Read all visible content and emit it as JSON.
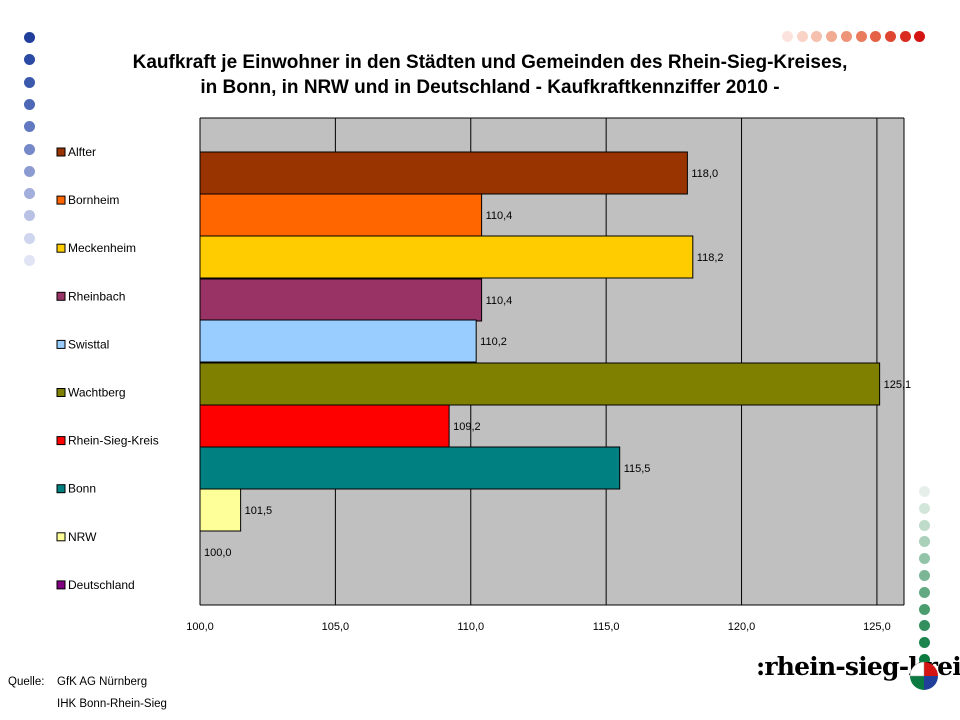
{
  "title": {
    "line1": "Kaufkraft je Einwohner in den Städten und Gemeinden des Rhein-Sieg-Kreises,",
    "line2": "in Bonn, in NRW und in Deutschland - Kaufkraftkennziffer 2010 -"
  },
  "source": {
    "label": "Quelle:",
    "line1": "GfK AG Nürnberg",
    "line2": "IHK Bonn-Rhein-Sieg"
  },
  "logo": {
    "text": ":rhein-sieg-kreis"
  },
  "decor": {
    "left_dot_colors": [
      "#1f3f9a",
      "#2b4aa3",
      "#3b59ad",
      "#4c68b6",
      "#6079c0",
      "#7589c8",
      "#8b9bd1",
      "#a2aedb",
      "#b9c2e5",
      "#cfd5ee",
      "#e0e4f4"
    ],
    "top_dot_colors": [
      "#fbe3dc",
      "#f8d3c6",
      "#f5c0ad",
      "#f2ab93",
      "#ee9478",
      "#ea7c5e",
      "#e56246",
      "#df4631",
      "#d92b1f",
      "#d41412"
    ],
    "right_dot_colors": [
      "#e6efe9",
      "#d3e6da",
      "#bfdbca",
      "#aad0b9",
      "#93c4a7",
      "#7bb795",
      "#63aa82",
      "#4b9d70",
      "#33905e",
      "#1c844d",
      "#0b7a40"
    ]
  },
  "chart_data": {
    "type": "bar",
    "orientation": "horizontal",
    "categories": [
      "Alfter",
      "Bornheim",
      "Meckenheim",
      "Rheinbach",
      "Swisttal",
      "Wachtberg",
      "Rhein-Sieg-Kreis",
      "Bonn",
      "NRW",
      "Deutschland"
    ],
    "values": [
      118.0,
      110.4,
      118.2,
      110.4,
      110.2,
      125.1,
      109.2,
      115.5,
      101.5,
      100.0
    ],
    "value_labels": [
      "118,0",
      "110,4",
      "118,2",
      "110,4",
      "110,2",
      "125,1",
      "109,2",
      "115,5",
      "101,5",
      "100,0"
    ],
    "colors": [
      "#993300",
      "#ff6600",
      "#ffcc00",
      "#993366",
      "#99ccff",
      "#808000",
      "#ff0000",
      "#008080",
      "#ffff99",
      "#800080"
    ],
    "xlim": [
      100,
      126
    ],
    "xticks": [
      100,
      105,
      110,
      115,
      120,
      125
    ],
    "xtick_labels": [
      "100,0",
      "105,0",
      "110,0",
      "115,0",
      "120,0",
      "125,0"
    ],
    "grid": true,
    "legend": "left",
    "plot_background": "#c0c0c0"
  }
}
